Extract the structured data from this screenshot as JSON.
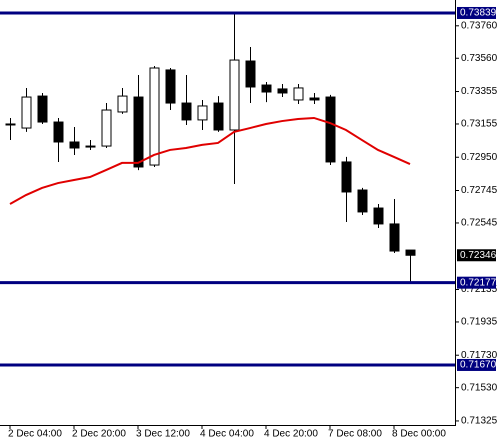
{
  "chart_data": {
    "type": "candlestick",
    "categories": [
      "2 Dec 04:00",
      null,
      null,
      null,
      "2 Dec 20:00",
      null,
      null,
      null,
      "3 Dec 12:00",
      null,
      null,
      null,
      "4 Dec 04:00",
      null,
      null,
      null,
      "4 Dec 20:00",
      null,
      null,
      null,
      "7 Dec 08:00",
      null,
      null,
      null,
      "8 Dec 00:00",
      null
    ],
    "open": [
      0.73155,
      0.7313,
      0.73327,
      0.73167,
      0.73044,
      0.73019,
      0.73019,
      0.73229,
      0.73321,
      0.72902,
      0.73488,
      0.73284,
      0.7318,
      0.73284,
      0.73118,
      0.73543,
      0.73395,
      0.73371,
      0.73303,
      0.73315,
      0.73321,
      0.72921,
      0.72748,
      0.72637,
      0.72539,
      0.72378
    ],
    "high": [
      0.73192,
      0.73377,
      0.73346,
      0.73192,
      0.73136,
      0.73056,
      0.73284,
      0.73377,
      0.73457,
      0.73512,
      0.735,
      0.73457,
      0.73303,
      0.73327,
      0.73839,
      0.73629,
      0.73414,
      0.73401,
      0.73401,
      0.73346,
      0.73334,
      0.72952,
      0.72761,
      0.72662,
      0.72693,
      0.72378
    ],
    "low": [
      0.73056,
      0.73106,
      0.73155,
      0.72921,
      0.72964,
      0.72995,
      0.73007,
      0.73217,
      0.72871,
      0.7289,
      0.73241,
      0.73149,
      0.73118,
      0.73106,
      0.72785,
      0.73284,
      0.7329,
      0.73321,
      0.73278,
      0.73278,
      0.72902,
      0.72551,
      0.72594,
      0.72514,
      0.7236,
      0.72177
    ],
    "close": [
      0.73149,
      0.73321,
      0.73167,
      0.73044,
      0.73007,
      0.73013,
      0.73241,
      0.73327,
      0.7289,
      0.735,
      0.73284,
      0.7318,
      0.73266,
      0.73118,
      0.73549,
      0.73383,
      0.73352,
      0.73346,
      0.73377,
      0.73303,
      0.72921,
      0.72736,
      0.72613,
      0.72539,
      0.72372,
      0.72346
    ],
    "bull_color": "#ffffff",
    "bear_color": "#000000",
    "moving_average": {
      "color": "#e00000",
      "values": [
        0.72662,
        0.72717,
        0.72761,
        0.72791,
        0.7281,
        0.72828,
        0.72871,
        0.72915,
        0.72915,
        0.72964,
        0.72995,
        0.73007,
        0.73026,
        0.73038,
        0.73106,
        0.7313,
        0.73155,
        0.73173,
        0.73186,
        0.73192,
        0.73161,
        0.73118,
        0.73056,
        0.72995,
        0.72952,
        0.72908
      ]
    },
    "hlines": [
      {
        "value": 0.73839,
        "label": "0.73839"
      },
      {
        "value": 0.72177,
        "label": "0.72177"
      },
      {
        "value": 0.7167,
        "label": "0.71670"
      }
    ],
    "hline_color": "#000080",
    "last_price": {
      "value": 0.72346,
      "label": "0.72346"
    },
    "ylim": [
      0.713,
      0.73919
    ],
    "yticks": [
      {
        "value": 0.7376,
        "label": "0.73760"
      },
      {
        "value": 0.7356,
        "label": "0.73560"
      },
      {
        "value": 0.73355,
        "label": "0.73355"
      },
      {
        "value": 0.73155,
        "label": "0.73155"
      },
      {
        "value": 0.7295,
        "label": "0.72950"
      },
      {
        "value": 0.72745,
        "label": "0.72745"
      },
      {
        "value": 0.72545,
        "label": "0.72545"
      },
      {
        "value": 0.72135,
        "label": "0.72135"
      },
      {
        "value": 0.71935,
        "label": "0.71935"
      },
      {
        "value": 0.7173,
        "label": "0.71730"
      },
      {
        "value": 0.7153,
        "label": "0.71530"
      },
      {
        "value": 0.71325,
        "label": "0.71325"
      }
    ],
    "grid": false
  }
}
